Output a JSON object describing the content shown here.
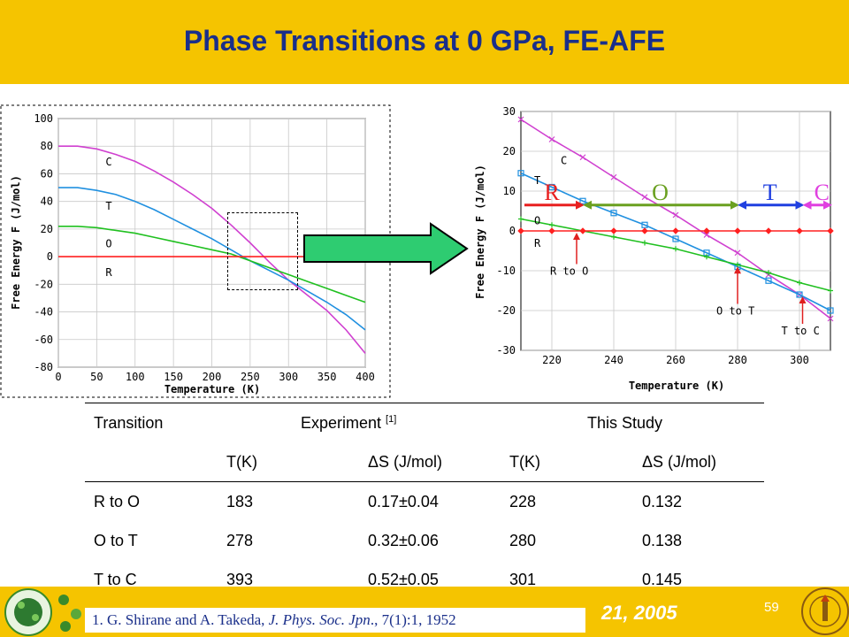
{
  "slide": {
    "title": "Phase Transitions at 0 GPa, FE-AFE",
    "page_number": "59",
    "footer_partial": "21, 2005",
    "reference": {
      "authors": "1. G. Shirane and A. Takeda, ",
      "journal": "J. Phys. Soc. Jpn",
      "rest": "., 7(1):1, 1952"
    },
    "colors": {
      "header": "#f5c400",
      "title": "#1a2f8a",
      "arrow_fill": "#2ecc71"
    }
  },
  "table": {
    "header1": {
      "transition": "Transition",
      "experiment": "Experiment ",
      "experiment_ref": "[1]",
      "this_study": "This Study"
    },
    "header2": [
      "T(K)",
      "ΔS (J/mol)",
      "T(K)",
      "ΔS (J/mol)"
    ],
    "rows": [
      {
        "transition": "R to O",
        "exp_t": "183",
        "exp_ds": "0.17±0.04",
        "study_t": "228",
        "study_ds": "0.132"
      },
      {
        "transition": "O to T",
        "exp_t": "278",
        "exp_ds": "0.32±0.06",
        "study_t": "280",
        "study_ds": "0.138"
      },
      {
        "transition": "T to C",
        "exp_t": "393",
        "exp_ds": "0.52±0.05",
        "study_t": "301",
        "study_ds": "0.145"
      }
    ]
  },
  "chart_data": [
    {
      "type": "line",
      "xlabel": "Temperature (K)",
      "ylabel": "Free Energy F (J/mol)",
      "xlim": [
        0,
        400
      ],
      "ylim": [
        -80,
        100
      ],
      "xticks": [
        0,
        50,
        100,
        150,
        200,
        250,
        300,
        350,
        400
      ],
      "yticks": [
        -80,
        -60,
        -40,
        -20,
        0,
        20,
        40,
        60,
        80,
        100
      ],
      "series": [
        {
          "name": "C",
          "color": "#d040d0",
          "x": [
            0,
            25,
            50,
            75,
            100,
            125,
            150,
            175,
            200,
            225,
            250,
            275,
            300,
            325,
            350,
            375,
            400
          ],
          "y": [
            80,
            80,
            78,
            74,
            69,
            62,
            54,
            45,
            35,
            23,
            10,
            -4,
            -17,
            -28,
            -39,
            -53,
            -70
          ]
        },
        {
          "name": "T",
          "color": "#2090e0",
          "x": [
            0,
            25,
            50,
            75,
            100,
            125,
            150,
            175,
            200,
            225,
            250,
            275,
            300,
            325,
            350,
            375,
            400
          ],
          "y": [
            50,
            50,
            48,
            45,
            40,
            34,
            27,
            20,
            13,
            5,
            -3,
            -10,
            -17,
            -25,
            -33,
            -42,
            -53
          ]
        },
        {
          "name": "O",
          "color": "#20c020",
          "x": [
            0,
            25,
            50,
            75,
            100,
            125,
            150,
            175,
            200,
            225,
            250,
            275,
            300,
            325,
            350,
            375,
            400
          ],
          "y": [
            22,
            22,
            21,
            19,
            17,
            14,
            11,
            8,
            5,
            2,
            -3,
            -8,
            -13,
            -18,
            -23,
            -28,
            -33
          ]
        },
        {
          "name": "R",
          "color": "#ff2020",
          "x": [
            0,
            400
          ],
          "y": [
            0,
            0
          ]
        }
      ]
    },
    {
      "type": "line",
      "xlabel": "Temperature (K)",
      "ylabel": "Free Energy F (J/mol)",
      "xlim": [
        210,
        310
      ],
      "ylim": [
        -30,
        30
      ],
      "xticks": [
        220,
        240,
        260,
        280,
        300
      ],
      "yticks": [
        -30,
        -20,
        -10,
        0,
        10,
        20,
        30
      ],
      "series": [
        {
          "name": "C",
          "color": "#d040d0",
          "marker": "x",
          "x": [
            210,
            220,
            230,
            240,
            250,
            260,
            270,
            280,
            290,
            300,
            310
          ],
          "y": [
            28,
            23,
            18.5,
            13.5,
            8.5,
            4,
            -1,
            -5.5,
            -11,
            -16,
            -22
          ]
        },
        {
          "name": "T",
          "color": "#2090e0",
          "marker": "square",
          "x": [
            210,
            220,
            230,
            240,
            250,
            260,
            270,
            280,
            290,
            300,
            310
          ],
          "y": [
            14.5,
            11,
            7.5,
            4.5,
            1.5,
            -2,
            -5.5,
            -9,
            -12.5,
            -16,
            -20
          ]
        },
        {
          "name": "O",
          "color": "#20c020",
          "marker": "plus",
          "x": [
            210,
            220,
            230,
            240,
            250,
            260,
            270,
            280,
            290,
            300,
            310
          ],
          "y": [
            3,
            1.5,
            0,
            -1.5,
            -3,
            -4.5,
            -6.5,
            -8.5,
            -10.5,
            -13,
            -15
          ]
        },
        {
          "name": "R",
          "color": "#ff2020",
          "marker": "diamond",
          "x": [
            210,
            220,
            230,
            240,
            250,
            260,
            270,
            280,
            290,
            300,
            310
          ],
          "y": [
            0,
            0,
            0,
            0,
            0,
            0,
            0,
            0,
            0,
            0,
            0
          ]
        }
      ],
      "annotations": [
        {
          "text": "R to O",
          "x": 228
        },
        {
          "text": "O to T",
          "x": 280
        },
        {
          "text": "T to C",
          "x": 301
        }
      ],
      "phase_bands": [
        {
          "label": "R",
          "color": "#e82020",
          "from": 210,
          "to": 230
        },
        {
          "label": "O",
          "color": "#6aa020",
          "from": 230,
          "to": 280
        },
        {
          "label": "T",
          "color": "#2040e0",
          "from": 280,
          "to": 301
        },
        {
          "label": "C",
          "color": "#e040e0",
          "from": 301,
          "to": 310
        }
      ]
    }
  ]
}
